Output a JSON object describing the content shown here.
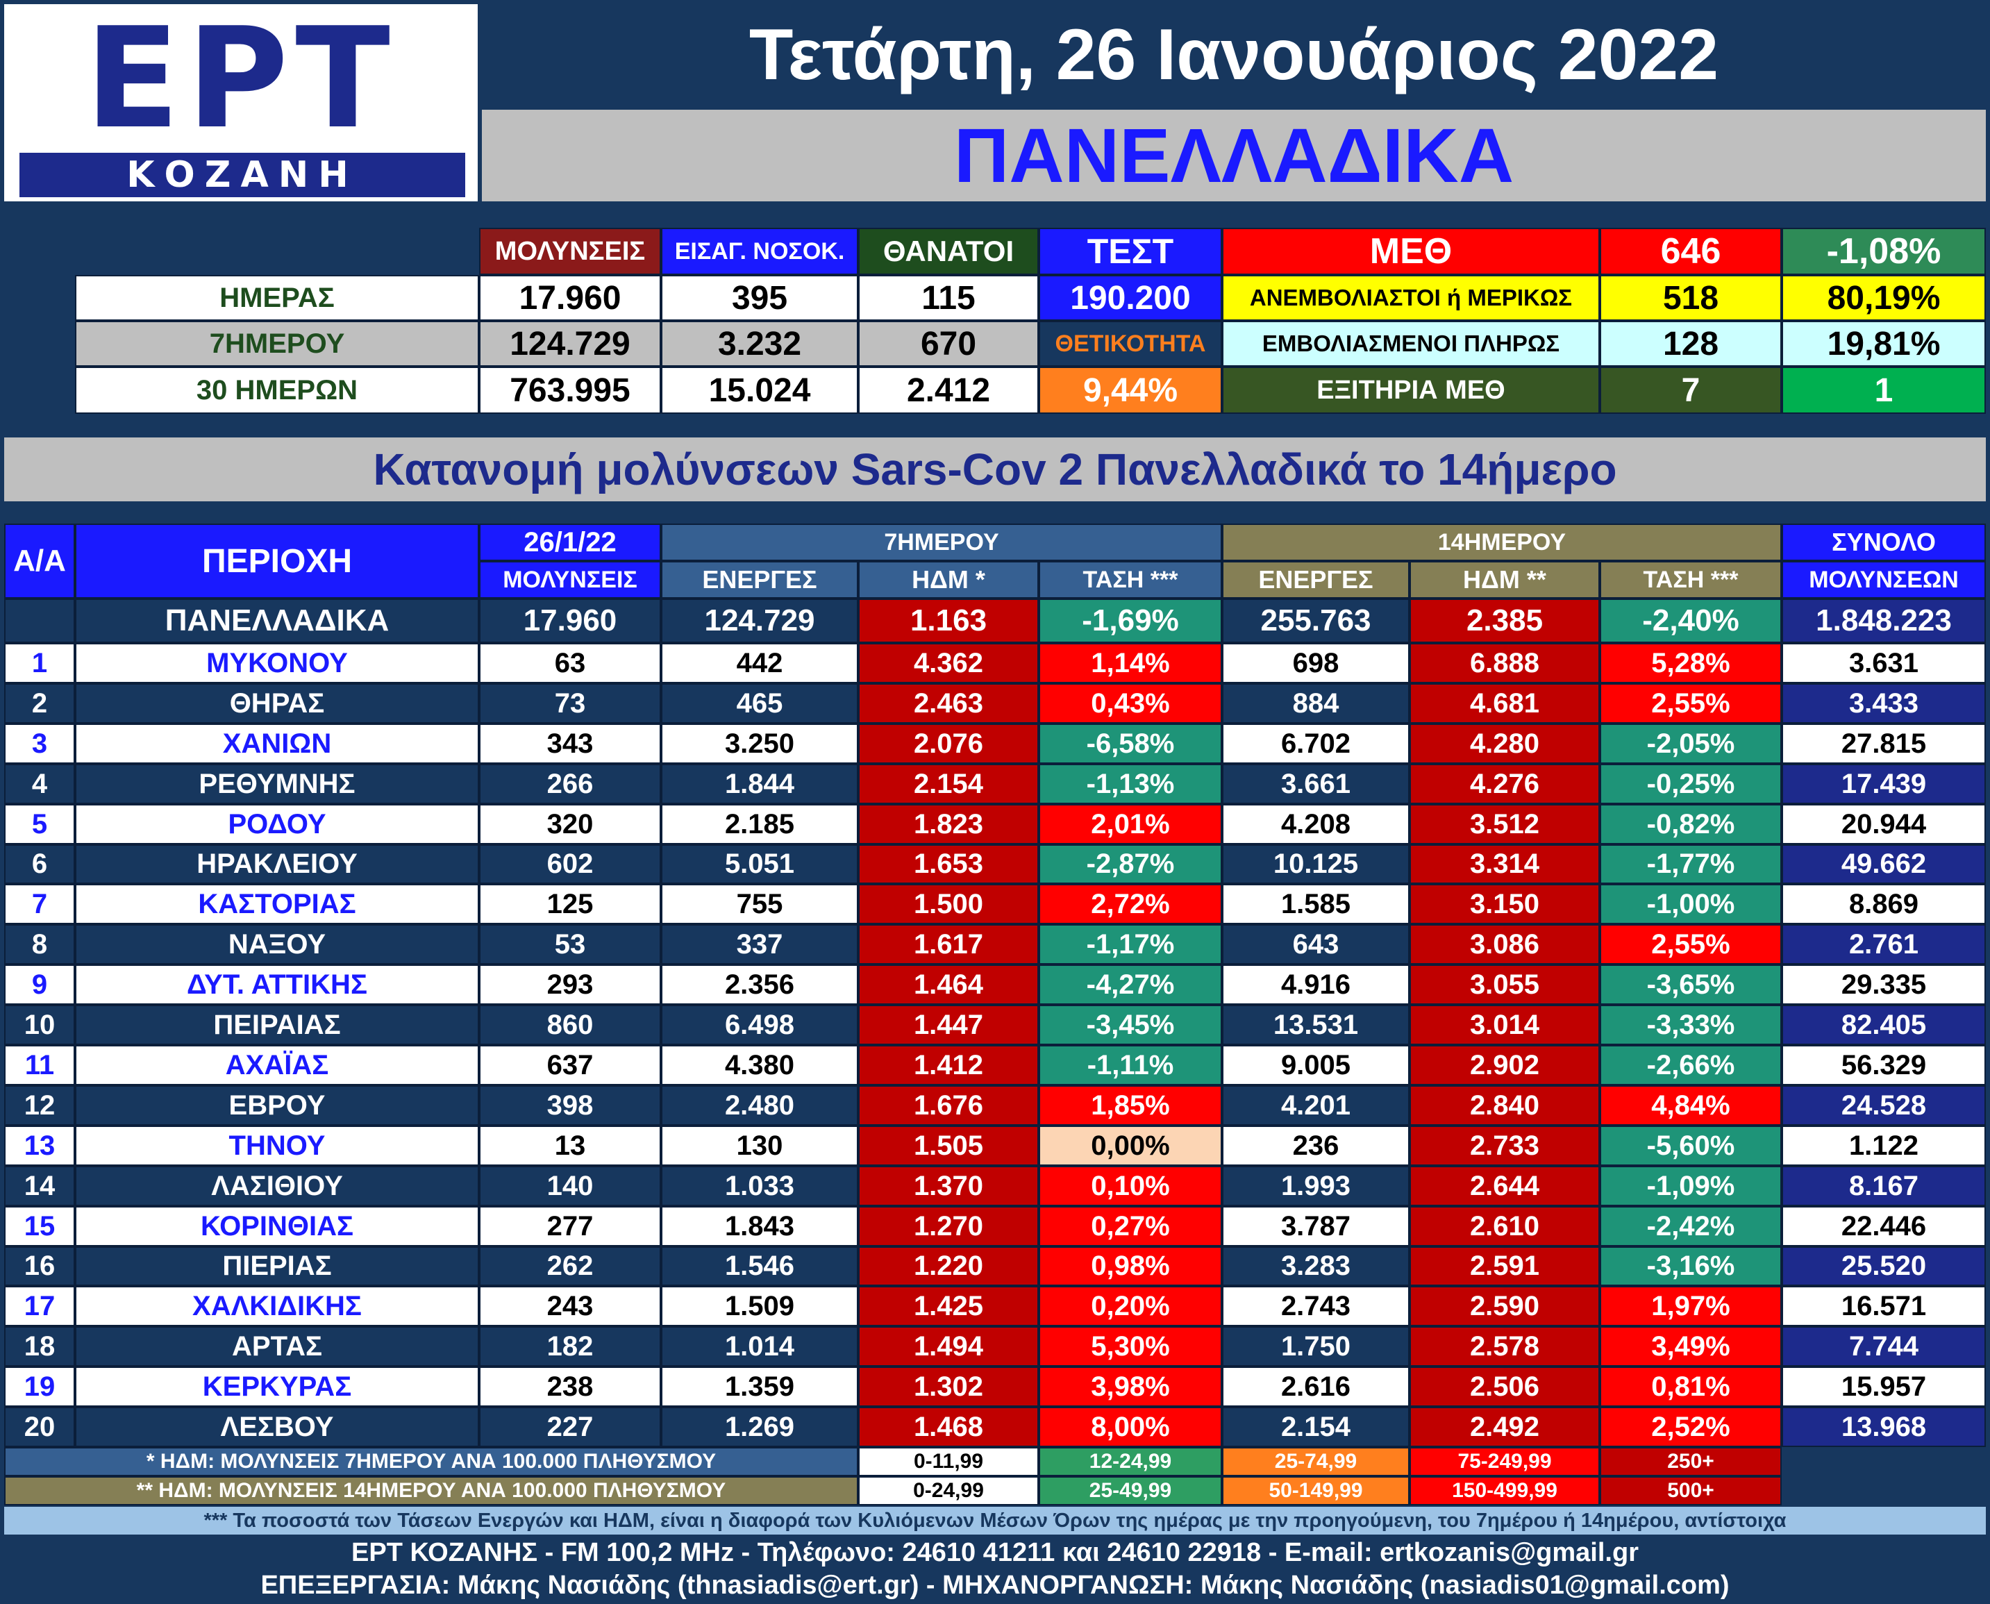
{
  "logo": {
    "brand": "ΕΡΤ",
    "city": "ΚΟΖΑΝΗ"
  },
  "date_title": "Τετάρτη, 26 Ιανουάριος 2022",
  "scope_title": "ΠΑΝΕΛΛΑΔΙΚΑ",
  "summary": {
    "headers": {
      "infections": "ΜΟΛΥΝΣΕΙΣ",
      "hospital": "ΕΙΣΑΓ. ΝΟΣΟΚ.",
      "deaths": "ΘΑΝΑΤΟΙ",
      "tests": "ΤΕΣΤ"
    },
    "rows": [
      {
        "label": "ΗΜΕΡΑΣ",
        "infections": "17.960",
        "hospital": "395",
        "deaths": "115"
      },
      {
        "label": "7ΗΜΕΡΟΥ",
        "infections": "124.729",
        "hospital": "3.232",
        "deaths": "670"
      },
      {
        "label": "30 ΗΜΕΡΩΝ",
        "infections": "763.995",
        "hospital": "15.024",
        "deaths": "2.412"
      }
    ],
    "tests_value": "190.200",
    "positivity_label": "ΘΕΤΙΚΟΤΗΤΑ",
    "positivity_value": "9,44%"
  },
  "icu": {
    "label": "ΜΕΘ",
    "value": "646",
    "change": "-1,08%",
    "rows": [
      {
        "label": "ΑΝΕΜΒΟΛΙΑΣΤΟΙ ή ΜΕΡΙΚΩΣ",
        "value": "518",
        "pct": "80,19%"
      },
      {
        "label": "ΕΜΒΟΛΙΑΣΜΕΝΟΙ ΠΛΗΡΩΣ",
        "value": "128",
        "pct": "19,81%"
      },
      {
        "label": "ΕΞΙΤΗΡΙΑ ΜΕΘ",
        "value": "7",
        "pct": "1"
      }
    ]
  },
  "section_title": "Κατανομή μολύνσεων Sars-Cov 2 Πανελλαδικά το 14ήμερο",
  "table": {
    "headers": {
      "aa": "Α/Α",
      "region": "ΠΕΡΙΟΧΗ",
      "date": "26/1/22",
      "infections": "ΜΟΛΥΝΣΕΙΣ",
      "group7": "7ΗΜΕΡΟΥ",
      "active7": "ΕΝΕΡΓΕΣ",
      "idm7": "ΗΔΜ *",
      "trend7": "ΤΑΣΗ ***",
      "group14": "14ΗΜΕΡΟΥ",
      "active14": "ΕΝΕΡΓΕΣ",
      "idm14": "ΗΔΜ **",
      "trend14": "ΤΑΣΗ ***",
      "total1": "ΣΥΝΟΛΟ",
      "total2": "ΜΟΛΥΝΣΕΩΝ"
    },
    "national": {
      "region": "ΠΑΝΕΛΛΑΔΙΚΑ",
      "day": "17.960",
      "a7": "124.729",
      "idm7": "1.163",
      "tr7": "-1,69%",
      "a14": "255.763",
      "idm14": "2.385",
      "tr14": "-2,40%",
      "total": "1.848.223"
    },
    "rows": [
      {
        "aa": "1",
        "region": "ΜΥΚΟΝΟΥ",
        "day": "63",
        "a7": "442",
        "idm7": "4.362",
        "tr7": "1,14%",
        "a14": "698",
        "idm14": "6.888",
        "tr14": "5,28%",
        "total": "3.631"
      },
      {
        "aa": "2",
        "region": "ΘΗΡΑΣ",
        "day": "73",
        "a7": "465",
        "idm7": "2.463",
        "tr7": "0,43%",
        "a14": "884",
        "idm14": "4.681",
        "tr14": "2,55%",
        "total": "3.433"
      },
      {
        "aa": "3",
        "region": "ΧΑΝΙΩΝ",
        "day": "343",
        "a7": "3.250",
        "idm7": "2.076",
        "tr7": "-6,58%",
        "a14": "6.702",
        "idm14": "4.280",
        "tr14": "-2,05%",
        "total": "27.815"
      },
      {
        "aa": "4",
        "region": "ΡΕΘΥΜΝΗΣ",
        "day": "266",
        "a7": "1.844",
        "idm7": "2.154",
        "tr7": "-1,13%",
        "a14": "3.661",
        "idm14": "4.276",
        "tr14": "-0,25%",
        "total": "17.439"
      },
      {
        "aa": "5",
        "region": "ΡΟΔΟΥ",
        "day": "320",
        "a7": "2.185",
        "idm7": "1.823",
        "tr7": "2,01%",
        "a14": "4.208",
        "idm14": "3.512",
        "tr14": "-0,82%",
        "total": "20.944"
      },
      {
        "aa": "6",
        "region": "ΗΡΑΚΛΕΙΟΥ",
        "day": "602",
        "a7": "5.051",
        "idm7": "1.653",
        "tr7": "-2,87%",
        "a14": "10.125",
        "idm14": "3.314",
        "tr14": "-1,77%",
        "total": "49.662"
      },
      {
        "aa": "7",
        "region": "ΚΑΣΤΟΡΙΑΣ",
        "day": "125",
        "a7": "755",
        "idm7": "1.500",
        "tr7": "2,72%",
        "a14": "1.585",
        "idm14": "3.150",
        "tr14": "-1,00%",
        "total": "8.869"
      },
      {
        "aa": "8",
        "region": "ΝΑΞΟΥ",
        "day": "53",
        "a7": "337",
        "idm7": "1.617",
        "tr7": "-1,17%",
        "a14": "643",
        "idm14": "3.086",
        "tr14": "2,55%",
        "total": "2.761"
      },
      {
        "aa": "9",
        "region": "ΔΥΤ. ΑΤΤΙΚΗΣ",
        "day": "293",
        "a7": "2.356",
        "idm7": "1.464",
        "tr7": "-4,27%",
        "a14": "4.916",
        "idm14": "3.055",
        "tr14": "-3,65%",
        "total": "29.335"
      },
      {
        "aa": "10",
        "region": "ΠΕΙΡΑΙΑΣ",
        "day": "860",
        "a7": "6.498",
        "idm7": "1.447",
        "tr7": "-3,45%",
        "a14": "13.531",
        "idm14": "3.014",
        "tr14": "-3,33%",
        "total": "82.405"
      },
      {
        "aa": "11",
        "region": "ΑΧΑΪΑΣ",
        "day": "637",
        "a7": "4.380",
        "idm7": "1.412",
        "tr7": "-1,11%",
        "a14": "9.005",
        "idm14": "2.902",
        "tr14": "-2,66%",
        "total": "56.329"
      },
      {
        "aa": "12",
        "region": "ΕΒΡΟΥ",
        "day": "398",
        "a7": "2.480",
        "idm7": "1.676",
        "tr7": "1,85%",
        "a14": "4.201",
        "idm14": "2.840",
        "tr14": "4,84%",
        "total": "24.528"
      },
      {
        "aa": "13",
        "region": "ΤΗΝΟΥ",
        "day": "13",
        "a7": "130",
        "idm7": "1.505",
        "tr7": "0,00%",
        "a14": "236",
        "idm14": "2.733",
        "tr14": "-5,60%",
        "total": "1.122"
      },
      {
        "aa": "14",
        "region": "ΛΑΣΙΘΙΟΥ",
        "day": "140",
        "a7": "1.033",
        "idm7": "1.370",
        "tr7": "0,10%",
        "a14": "1.993",
        "idm14": "2.644",
        "tr14": "-1,09%",
        "total": "8.167"
      },
      {
        "aa": "15",
        "region": "ΚΟΡΙΝΘΙΑΣ",
        "day": "277",
        "a7": "1.843",
        "idm7": "1.270",
        "tr7": "0,27%",
        "a14": "3.787",
        "idm14": "2.610",
        "tr14": "-2,42%",
        "total": "22.446"
      },
      {
        "aa": "16",
        "region": "ΠΙΕΡΙΑΣ",
        "day": "262",
        "a7": "1.546",
        "idm7": "1.220",
        "tr7": "0,98%",
        "a14": "3.283",
        "idm14": "2.591",
        "tr14": "-3,16%",
        "total": "25.520"
      },
      {
        "aa": "17",
        "region": "ΧΑΛΚΙΔΙΚΗΣ",
        "day": "243",
        "a7": "1.509",
        "idm7": "1.425",
        "tr7": "0,20%",
        "a14": "2.743",
        "idm14": "2.590",
        "tr14": "1,97%",
        "total": "16.571"
      },
      {
        "aa": "18",
        "region": "ΑΡΤΑΣ",
        "day": "182",
        "a7": "1.014",
        "idm7": "1.494",
        "tr7": "5,30%",
        "a14": "1.750",
        "idm14": "2.578",
        "tr14": "3,49%",
        "total": "7.744"
      },
      {
        "aa": "19",
        "region": "ΚΕΡΚΥΡΑΣ",
        "day": "238",
        "a7": "1.359",
        "idm7": "1.302",
        "tr7": "3,98%",
        "a14": "2.616",
        "idm14": "2.506",
        "tr14": "0,81%",
        "total": "15.957"
      },
      {
        "aa": "20",
        "region": "ΛΕΣΒΟΥ",
        "day": "227",
        "a7": "1.269",
        "idm7": "1.468",
        "tr7": "8,00%",
        "a14": "2.154",
        "idm14": "2.492",
        "tr14": "2,52%",
        "total": "13.968"
      }
    ]
  },
  "legend": {
    "idm7_note": "* ΗΔΜ: ΜΟΛΥΝΣΕΙΣ 7ΗΜΕΡΟΥ ΑΝΑ 100.000 ΠΛΗΘΥΣΜΟΥ",
    "idm7_ranges": [
      "0-11,99",
      "12-24,99",
      "25-74,99",
      "75-249,99",
      "250+"
    ],
    "idm14_note": "** ΗΔΜ: ΜΟΛΥΝΣΕΙΣ 14ΗΜΕΡΟΥ ΑΝΑ 100.000 ΠΛΗΘΥΣΜΟΥ",
    "idm14_ranges": [
      "0-24,99",
      "25-49,99",
      "50-149,99",
      "150-499,99",
      "500+"
    ],
    "range_colors": [
      "#ffffff",
      "#2e9e62",
      "#ff7f1e",
      "#ff0000",
      "#c00000"
    ]
  },
  "footnote": "*** Τα ποσοστά των Τάσεων Ενεργών και ΗΔΜ, είναι η διαφορά των Κυλιόμενων Μέσων Όρων της ημέρας με την προηγούμενη, του 7ημέρου ή 14ημέρου, αντίστοιχα",
  "footer": {
    "line1": "ΕΡΤ ΚΟΖΑΝΗΣ - FM 100,2 MHz - Τηλέφωνο:  24610 41211 και 24610 22918 - E-mail: ertkozanis@gmail.gr",
    "line2": "ΕΠΕΞΕΡΓΑΣΙΑ: Μάκης Νασιάδης (thnasiadis@ert.gr) - ΜΗΧΑΝΟΡΓΑΝΩΣΗ: Μάκης Νασιάδης (nasiadis01@gmail.com)"
  },
  "colors": {
    "navy": "#17375e",
    "blue": "#1a1aff",
    "gray": "#bfbfbf",
    "maroon": "#8b1a1a",
    "dark_green": "#1e4d1e",
    "red": "#ff0000",
    "dark_red": "#c00000",
    "teal": "#1e9478",
    "yellow": "#ffff00",
    "light_cyan": "#ccffff",
    "olive": "#857f55",
    "steel": "#366092",
    "orange": "#ff7f1e",
    "peach": "#fcd5b4"
  }
}
